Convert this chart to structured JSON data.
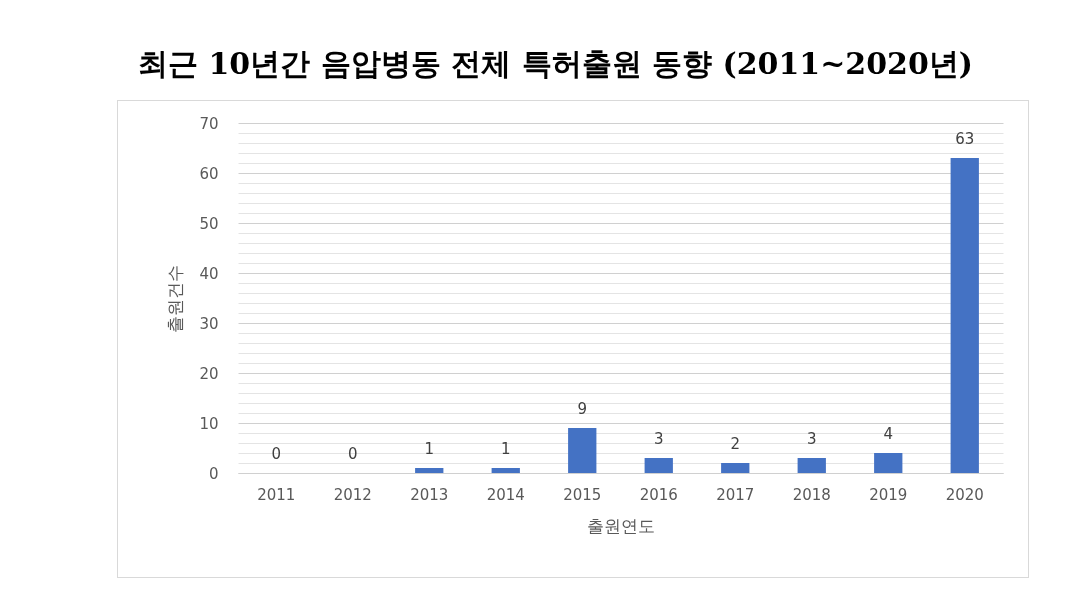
{
  "chart_data": {
    "type": "bar",
    "title": "최근 10년간 음압병동 전체 특허출원 동향 (2011~2020년)",
    "xlabel": "출원연도",
    "ylabel": "출원건수",
    "categories": [
      "2011",
      "2012",
      "2013",
      "2014",
      "2015",
      "2016",
      "2017",
      "2018",
      "2019",
      "2020"
    ],
    "values": [
      0,
      0,
      1,
      1,
      9,
      3,
      2,
      3,
      4,
      63
    ],
    "color": "#4472c4",
    "data_labels": true,
    "grid": true,
    "ylim": [
      0,
      70
    ],
    "yticks": [
      0,
      {
        "value": 2,
        "label": null
      },
      {
        "value": 4,
        "label": null
      },
      {
        "value": 6,
        "label": null
      },
      {
        "value": 8,
        "label": null
      },
      10,
      {
        "value": 12,
        "label": null
      },
      {
        "value": 14,
        "label": null
      },
      {
        "value": 16,
        "label": null
      },
      {
        "value": 18,
        "label": null
      },
      20,
      {
        "value": 22,
        "label": null
      },
      {
        "value": 24,
        "label": null
      },
      {
        "value": 26,
        "label": null
      },
      {
        "value": 28,
        "label": null
      },
      30,
      {
        "value": 32,
        "label": null
      },
      {
        "value": 34,
        "label": null
      },
      {
        "value": 36,
        "label": null
      },
      {
        "value": 38,
        "label": null
      },
      40,
      {
        "value": 42,
        "label": null
      },
      {
        "value": 44,
        "label": null
      },
      {
        "value": 46,
        "label": null
      },
      {
        "value": 48,
        "label": null
      },
      50,
      {
        "value": 52,
        "label": null
      },
      {
        "value": 54,
        "label": null
      },
      {
        "value": 56,
        "label": null
      },
      {
        "value": 58,
        "label": null
      },
      60,
      {
        "value": 62,
        "label": null
      },
      {
        "value": 64,
        "label": null
      },
      {
        "value": 66,
        "label": null
      },
      {
        "value": 68,
        "label": null
      },
      70
    ]
  }
}
